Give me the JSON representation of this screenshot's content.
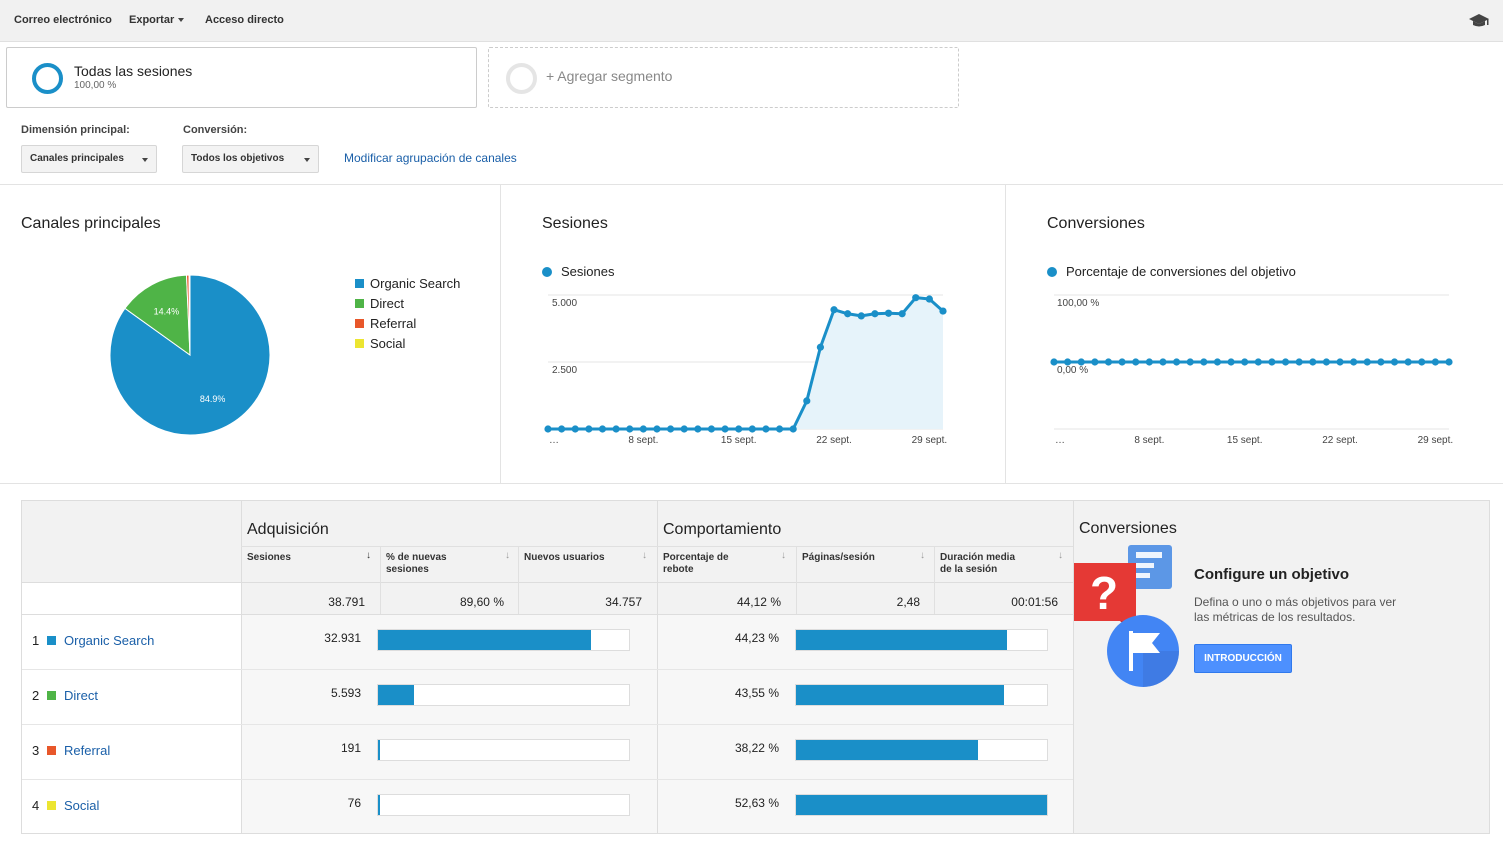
{
  "toolbar": {
    "email": "Correo electrónico",
    "export": "Exportar",
    "shortcut": "Acceso directo",
    "icon": "graduation-cap-icon"
  },
  "segments": {
    "active_title": "Todas las sesiones",
    "active_pct": "100,00 %",
    "add_label": "+ Agregar segmento"
  },
  "controls": {
    "primary_dimension_label": "Dimensión principal:",
    "primary_dimension_value": "Canales principales",
    "conversion_label": "Conversión:",
    "conversion_value": "Todos los objetivos",
    "modify_link": "Modificar agrupación de canales"
  },
  "colors": {
    "organic": "#1a8fc8",
    "direct": "#4fb447",
    "referral": "#e8572a",
    "social": "#ece531",
    "area_fill": "#e6f3fa"
  },
  "chart_data": [
    {
      "type": "pie",
      "title": "Canales principales",
      "categories": [
        "Organic Search",
        "Direct",
        "Referral",
        "Social"
      ],
      "values": [
        84.9,
        14.4,
        0.5,
        0.2
      ],
      "slice_labels": [
        "84.9%",
        "14.4%",
        "",
        ""
      ]
    },
    {
      "type": "area",
      "title": "Sesiones",
      "series": [
        {
          "name": "Sesiones",
          "values": [
            0,
            0,
            0,
            0,
            0,
            0,
            0,
            0,
            0,
            0,
            0,
            0,
            0,
            0,
            0,
            0,
            0,
            0,
            0,
            1050,
            3050,
            4450,
            4300,
            4220,
            4300,
            4320,
            4300,
            4900,
            4850,
            4400
          ]
        }
      ],
      "ylim": [
        0,
        5000
      ],
      "yticks": [
        "5.000",
        "2.500"
      ],
      "xtick_labels": [
        "…",
        "8 sept.",
        "15 sept.",
        "22 sept.",
        "29 sept."
      ],
      "xtick_index": [
        0,
        7,
        14,
        21,
        28
      ]
    },
    {
      "type": "line",
      "title": "Conversiones",
      "series": [
        {
          "name": "Porcentaje de conversiones del objetivo",
          "values": [
            0,
            0,
            0,
            0,
            0,
            0,
            0,
            0,
            0,
            0,
            0,
            0,
            0,
            0,
            0,
            0,
            0,
            0,
            0,
            0,
            0,
            0,
            0,
            0,
            0,
            0,
            0,
            0,
            0,
            0
          ]
        }
      ],
      "yticks": [
        "100,00 %",
        "0,00 %"
      ],
      "xtick_labels": [
        "…",
        "8 sept.",
        "15 sept.",
        "22 sept.",
        "29 sept."
      ],
      "xtick_index": [
        0,
        7,
        14,
        21,
        28
      ]
    }
  ],
  "table": {
    "groups": {
      "acquisition": "Adquisición",
      "behavior": "Comportamiento",
      "conversions": "Conversiones"
    },
    "headers": {
      "sessions": "Sesiones",
      "new_sessions_1": "% de nuevas",
      "new_sessions_2": "sesiones",
      "new_users": "Nuevos usuarios",
      "bounce_1": "Porcentaje de",
      "bounce_2": "rebote",
      "pages": "Páginas/sesión",
      "duration_1": "Duración media",
      "duration_2": "de la sesión"
    },
    "totals": {
      "sessions": "38.791",
      "new_sessions": "89,60 %",
      "new_users": "34.757",
      "bounce": "44,12 %",
      "pages": "2,48",
      "duration": "00:01:56"
    },
    "rows": [
      {
        "n": "1",
        "name": "Organic Search",
        "sessions": "32.931",
        "sessions_share": 0.849,
        "bounce": "44,23 %",
        "bounce_share": 0.8404
      },
      {
        "n": "2",
        "name": "Direct",
        "sessions": "5.593",
        "sessions_share": 0.144,
        "bounce": "43,55 %",
        "bounce_share": 0.8275
      },
      {
        "n": "3",
        "name": "Referral",
        "sessions": "191",
        "sessions_share": 0.005,
        "bounce": "38,22 %",
        "bounce_share": 0.7262
      },
      {
        "n": "4",
        "name": "Social",
        "sessions": "76",
        "sessions_share": 0.002,
        "bounce": "52,63 %",
        "bounce_share": 1.0
      }
    ]
  },
  "goal": {
    "title": "Configure un objetivo",
    "desc": "Defina o uno o más objetivos para ver las métricas de los resultados.",
    "button": "INTRODUCCIÓN"
  }
}
